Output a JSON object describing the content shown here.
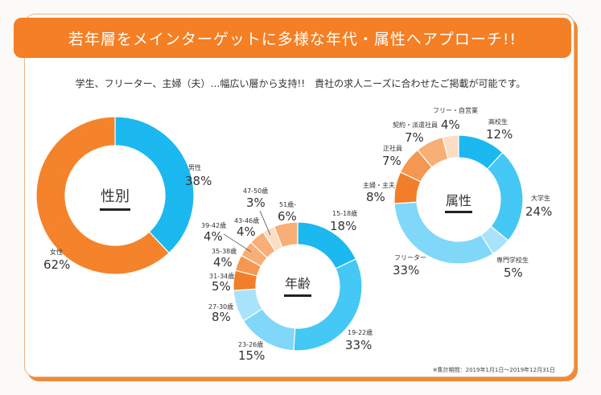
{
  "header": {
    "title": "若年層をメインターゲットに多様な年代・属性へアプローチ!!"
  },
  "subtitle": "学生、フリーター、主婦（夫）…幅広い層から支持!!　貴社の求人ニーズに合わせたご掲載が可能です。",
  "footnote": "※集計期間：2019年1月1日～2019年12月31日",
  "colors": {
    "brand_orange": "#f47f24",
    "blue_1": "#14b6ef",
    "blue_2": "#3fc6f4",
    "blue_3": "#7cd6f8",
    "blue_4": "#a6e2fa",
    "orange_1": "#f17a23",
    "orange_2": "#f5944c",
    "orange_3": "#f8ac72",
    "orange_4": "#fac197",
    "orange_5": "#fcdcc2"
  },
  "chart_data": [
    {
      "type": "pie",
      "title": "性別",
      "categories": [
        "男性",
        "女性"
      ],
      "values": [
        38,
        62
      ],
      "labels": [
        "38%",
        "62%"
      ],
      "colors": [
        "#14b6ef",
        "#f47f24"
      ],
      "unit": "%"
    },
    {
      "type": "pie",
      "title": "年齢",
      "categories": [
        "15-18歳",
        "19-22歳",
        "23-26歳",
        "27-30歳",
        "31-34歳",
        "35-38歳",
        "39-42歳",
        "43-46歳",
        "47-50歳",
        "51歳-"
      ],
      "values": [
        18,
        33,
        15,
        8,
        5,
        4,
        4,
        4,
        3,
        6
      ],
      "labels": [
        "18%",
        "33%",
        "15%",
        "8%",
        "5%",
        "4%",
        "4%",
        "4%",
        "3%",
        "6%"
      ],
      "colors": [
        "#14b6ef",
        "#3fc6f4",
        "#7cd6f8",
        "#a6e2fa",
        "#f17a23",
        "#f5944c",
        "#f8ac72",
        "#f8ac72",
        "#fcdcc2",
        "#f8ac72"
      ],
      "unit": "%"
    },
    {
      "type": "pie",
      "title": "属性",
      "categories": [
        "高校生",
        "大学生",
        "専門学校生",
        "フリーター",
        "主婦・主夫",
        "正社員",
        "契約・派遣社員",
        "フリー・自営業"
      ],
      "values": [
        12,
        24,
        5,
        33,
        8,
        7,
        7,
        4
      ],
      "labels": [
        "12%",
        "24%",
        "5%",
        "33%",
        "8%",
        "7%",
        "7%",
        "4%"
      ],
      "colors": [
        "#14b6ef",
        "#3fc6f4",
        "#a6e2fa",
        "#7cd6f8",
        "#f17a23",
        "#f5944c",
        "#f8ac72",
        "#fcdcc2"
      ],
      "unit": "%"
    }
  ]
}
